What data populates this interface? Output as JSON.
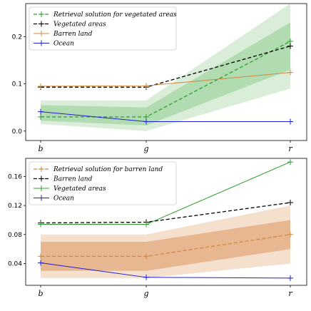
{
  "chart_data": [
    {
      "type": "line",
      "categories": [
        "b",
        "g",
        "r"
      ],
      "ylim": [
        -0.02,
        0.27
      ],
      "yticks": [
        "0.0",
        "0.1",
        "0.2"
      ],
      "ytick_values": [
        0.0,
        0.1,
        0.2
      ],
      "legend_position": "top-left",
      "grid": false,
      "bands": [
        {
          "series": "Retrieval solution for vegetated areas",
          "lower": [
            0.015,
            0.0,
            0.09
          ],
          "upper": [
            0.065,
            0.065,
            0.27
          ],
          "color": "#c9e6c9",
          "opacity": 0.7
        },
        {
          "series": "Retrieval solution for vegetated areas",
          "lower": [
            0.022,
            0.012,
            0.13
          ],
          "upper": [
            0.055,
            0.05,
            0.23
          ],
          "color": "#8fcd8f",
          "opacity": 0.55
        }
      ],
      "series": [
        {
          "name": "Retrieval solution for vegetated areas",
          "values": [
            0.03,
            0.03,
            0.19
          ],
          "color": "#2ca02c",
          "dashed": true,
          "width": 1.3
        },
        {
          "name": "Vegetated areas",
          "values": [
            0.093,
            0.093,
            0.18
          ],
          "color": "#000000",
          "dashed": true,
          "width": 1.3
        },
        {
          "name": "Barren land",
          "values": [
            0.095,
            0.096,
            0.124
          ],
          "color": "#d08a3c",
          "dashed": false,
          "width": 1.0
        },
        {
          "name": "Ocean",
          "values": [
            0.041,
            0.02,
            0.02
          ],
          "color": "#1f1fd6",
          "dashed": false,
          "width": 1.0
        }
      ]
    },
    {
      "type": "line",
      "categories": [
        "b",
        "g",
        "r"
      ],
      "ylim": [
        0.01,
        0.185
      ],
      "yticks": [
        "0.04",
        "0.08",
        "0.12",
        "0.16"
      ],
      "ytick_values": [
        0.04,
        0.08,
        0.12,
        0.16
      ],
      "legend_position": "top-left",
      "grid": false,
      "bands": [
        {
          "series": "Retrieval solution for barren land",
          "lower": [
            0.02,
            0.02,
            0.04
          ],
          "upper": [
            0.08,
            0.08,
            0.12
          ],
          "color": "#f3d9c4",
          "opacity": 0.85
        },
        {
          "series": "Retrieval solution for barren land",
          "lower": [
            0.03,
            0.03,
            0.06
          ],
          "upper": [
            0.07,
            0.07,
            0.1
          ],
          "color": "#e2aa7d",
          "opacity": 0.75
        }
      ],
      "series": [
        {
          "name": "Retrieval solution for barren land",
          "values": [
            0.05,
            0.05,
            0.08
          ],
          "color": "#d08a3c",
          "dashed": true,
          "width": 1.3
        },
        {
          "name": "Barren land",
          "values": [
            0.096,
            0.097,
            0.124
          ],
          "color": "#000000",
          "dashed": true,
          "width": 1.3
        },
        {
          "name": "Vegetated areas",
          "values": [
            0.094,
            0.094,
            0.18
          ],
          "color": "#2ca02c",
          "dashed": false,
          "width": 1.0
        },
        {
          "name": "Ocean",
          "values": [
            0.041,
            0.021,
            0.02
          ],
          "color": "#1f1fd6",
          "dashed": false,
          "width": 1.0
        }
      ]
    }
  ]
}
